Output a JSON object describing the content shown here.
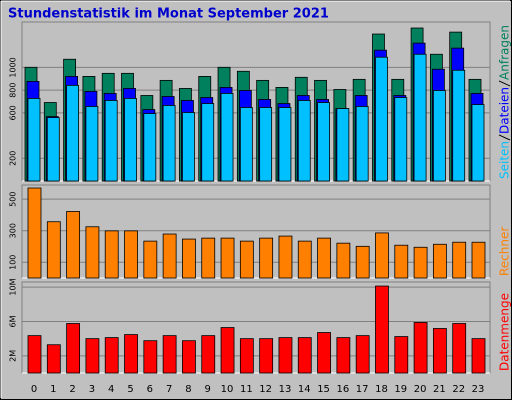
{
  "chart_data": [
    {
      "type": "bar",
      "title": "Stundenstatistik im Monat September 2021",
      "ylim": [
        0,
        1400
      ],
      "yticks": [
        200,
        600,
        800,
        1000
      ],
      "grid": true,
      "series": [
        {
          "name": "Anfragen",
          "color": "#00805c",
          "values": [
            1001,
            691,
            1072,
            921,
            948,
            948,
            753,
            886,
            815,
            921,
            1001,
            966,
            886,
            824,
            913,
            886,
            806,
            895,
            1294,
            895,
            1347,
            1116,
            1311,
            895
          ]
        },
        {
          "name": "Dateien",
          "color": "#0000ff",
          "values": [
            877,
            567,
            921,
            789,
            771,
            815,
            629,
            744,
            709,
            735,
            824,
            797,
            718,
            682,
            753,
            718,
            638,
            753,
            1152,
            753,
            1214,
            984,
            1170,
            771
          ]
        },
        {
          "name": "Seiten",
          "color": "#00c0ff",
          "values": [
            727,
            558,
            842,
            656,
            709,
            727,
            594,
            665,
            603,
            682,
            771,
            647,
            647,
            647,
            709,
            691,
            638,
            656,
            1090,
            735,
            1116,
            797,
            975,
            673
          ]
        }
      ]
    },
    {
      "type": "bar",
      "ylim": [
        0,
        590
      ],
      "yticks": [
        100,
        300,
        500
      ],
      "grid": true,
      "series": [
        {
          "name": "Rechner",
          "color": "#ff8000",
          "values": [
            571,
            357,
            422,
            325,
            299,
            299,
            234,
            279,
            247,
            253,
            253,
            234,
            253,
            266,
            234,
            253,
            221,
            201,
            286,
            208,
            195,
            214,
            227,
            227
          ]
        }
      ]
    },
    {
      "type": "bar",
      "ylim": [
        0,
        10590000
      ],
      "yticks": [
        {
          "value": 2000000,
          "label": "2M"
        },
        {
          "value": 6000000,
          "label": "6M"
        },
        {
          "value": 10000000,
          "label": "10M"
        }
      ],
      "grid": true,
      "categories": [
        "0",
        "1",
        "2",
        "3",
        "4",
        "5",
        "6",
        "7",
        "8",
        "9",
        "10",
        "11",
        "12",
        "13",
        "14",
        "15",
        "16",
        "17",
        "18",
        "19",
        "20",
        "21",
        "22",
        "23"
      ],
      "series": [
        {
          "name": "Datenmenge",
          "color": "#ff0000",
          "values": [
            4350000,
            3290000,
            5760000,
            4000000,
            4120000,
            4470000,
            3760000,
            4350000,
            3760000,
            4350000,
            5290000,
            4000000,
            4000000,
            4120000,
            4120000,
            4710000,
            4120000,
            4350000,
            10120000,
            4240000,
            5880000,
            5180000,
            5760000,
            4000000
          ]
        }
      ]
    }
  ]
}
